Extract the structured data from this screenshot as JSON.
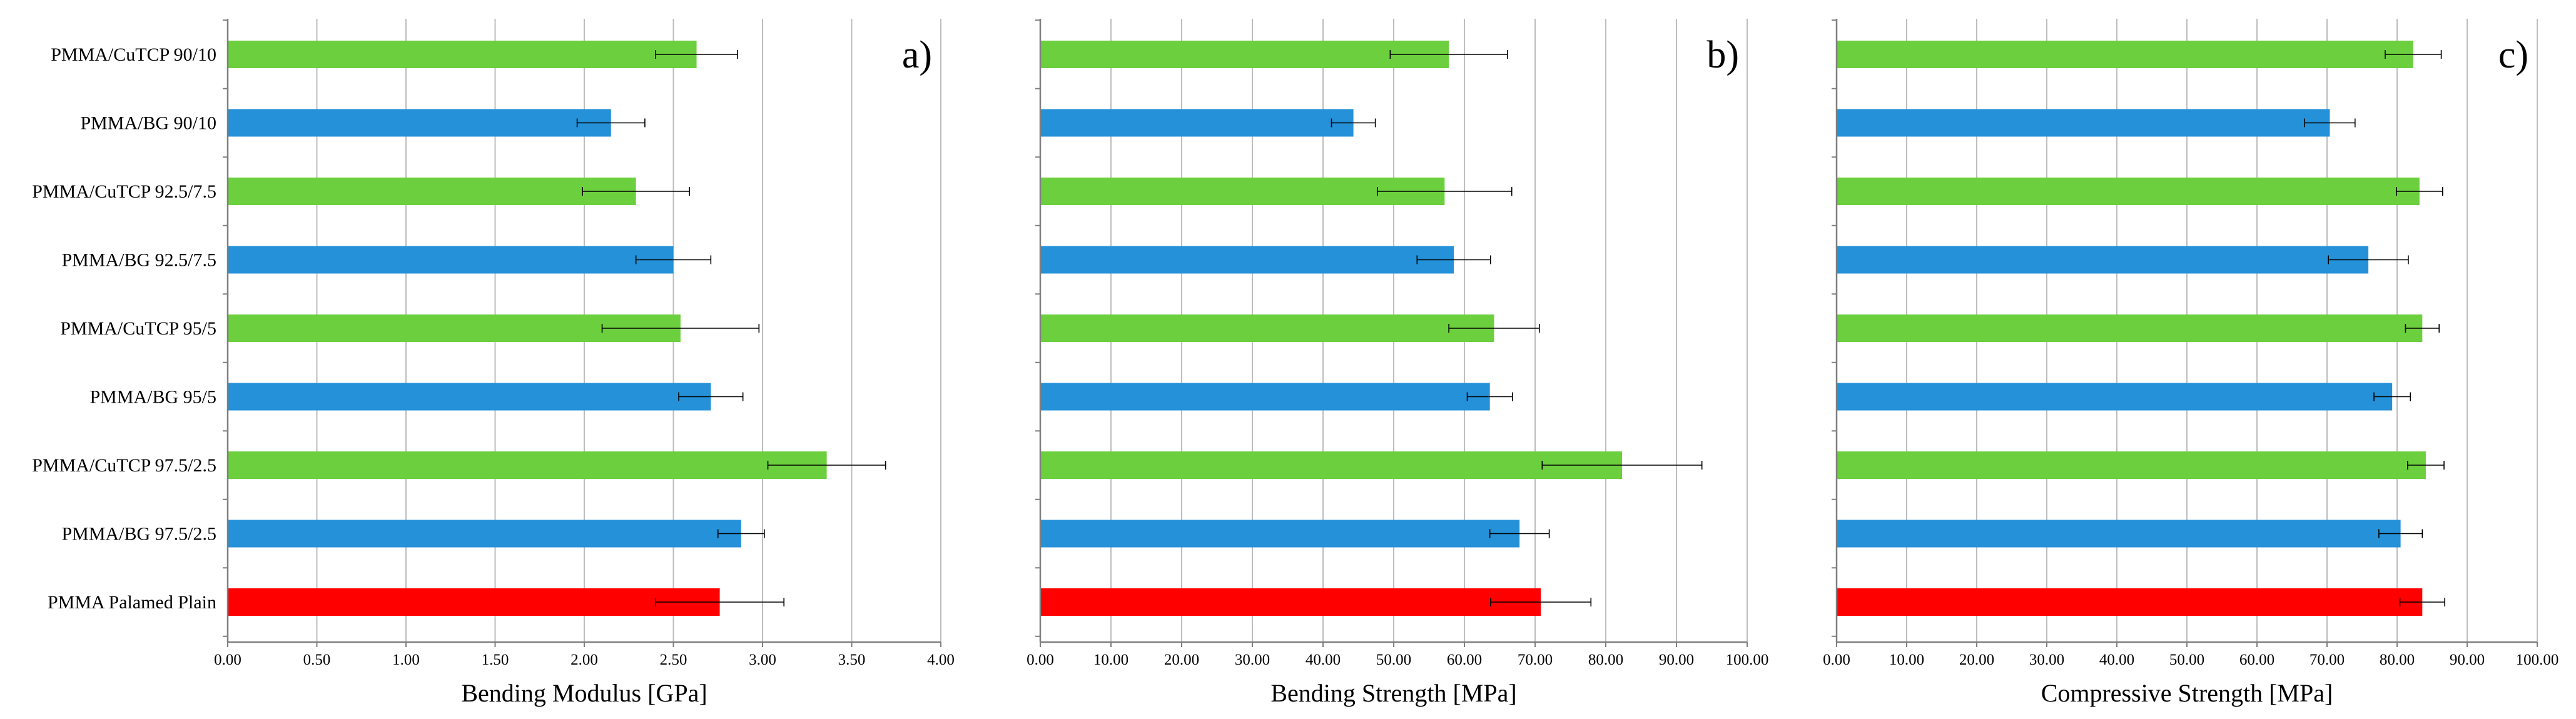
{
  "colors": {
    "cutcp": "#6ccf3e",
    "bg": "#2491d8",
    "plain": "#fe0000",
    "gridline": "#bdbdbd",
    "axis": "#7f7f7f",
    "errorbar": "#000000"
  },
  "chart_data": [
    {
      "type": "bar",
      "orientation": "horizontal",
      "panel_label": "a)",
      "xlabel": "Bending Modulus [GPa]",
      "xlim": [
        0,
        4.0
      ],
      "xticks": [
        "0.00",
        "0.50",
        "1.00",
        "1.50",
        "2.00",
        "2.50",
        "3.00",
        "3.50",
        "4.00"
      ],
      "categories": [
        "PMMA/CuTCP 90/10",
        "PMMA/BG 90/10",
        "PMMA/CuTCP 92.5/7.5",
        "PMMA/BG 92.5/7.5",
        "PMMA/CuTCP 95/5",
        "PMMA/BG 95/5",
        "PMMA/CuTCP 97.5/2.5",
        "PMMA/BG 97.5/2.5",
        "PMMA Palamed Plain"
      ],
      "groups": [
        "cutcp",
        "bg",
        "cutcp",
        "bg",
        "cutcp",
        "bg",
        "cutcp",
        "bg",
        "plain"
      ],
      "values": [
        2.63,
        2.15,
        2.29,
        2.5,
        2.54,
        2.71,
        3.36,
        2.88,
        2.76
      ],
      "errors": [
        0.23,
        0.19,
        0.3,
        0.21,
        0.44,
        0.18,
        0.33,
        0.13,
        0.36
      ],
      "grid": true
    },
    {
      "type": "bar",
      "orientation": "horizontal",
      "panel_label": "b)",
      "xlabel": "Bending Strength [MPa]",
      "xlim": [
        0,
        100
      ],
      "xticks": [
        "0.00",
        "10.00",
        "20.00",
        "30.00",
        "40.00",
        "50.00",
        "60.00",
        "70.00",
        "80.00",
        "90.00",
        "100.00"
      ],
      "categories": [
        "PMMA/CuTCP 90/10",
        "PMMA/BG 90/10",
        "PMMA/CuTCP 92.5/7.5",
        "PMMA/BG 92.5/7.5",
        "PMMA/CuTCP 95/5",
        "PMMA/BG 95/5",
        "PMMA/CuTCP 97.5/2.5",
        "PMMA/BG 97.5/2.5",
        "PMMA Palamed Plain"
      ],
      "groups": [
        "cutcp",
        "bg",
        "cutcp",
        "bg",
        "cutcp",
        "bg",
        "cutcp",
        "bg",
        "plain"
      ],
      "values": [
        57.8,
        44.3,
        57.2,
        58.5,
        64.2,
        63.6,
        82.3,
        67.8,
        70.8
      ],
      "errors": [
        8.3,
        3.1,
        9.5,
        5.2,
        6.4,
        3.2,
        11.3,
        4.2,
        7.1
      ],
      "grid": true
    },
    {
      "type": "bar",
      "orientation": "horizontal",
      "panel_label": "c)",
      "xlabel": "Compressive Strength [MPa]",
      "xlim": [
        0,
        100
      ],
      "xticks": [
        "0.00",
        "10.00",
        "20.00",
        "30.00",
        "40.00",
        "50.00",
        "60.00",
        "70.00",
        "80.00",
        "90.00",
        "100.00"
      ],
      "categories": [
        "PMMA/CuTCP 90/10",
        "PMMA/BG 90/10",
        "PMMA/CuTCP 92.5/7.5",
        "PMMA/BG 92.5/7.5",
        "PMMA/CuTCP 95/5",
        "PMMA/BG 95/5",
        "PMMA/CuTCP 97.5/2.5",
        "PMMA/BG 97.5/2.5",
        "PMMA Palamed Plain"
      ],
      "groups": [
        "cutcp",
        "bg",
        "cutcp",
        "bg",
        "cutcp",
        "bg",
        "cutcp",
        "bg",
        "plain"
      ],
      "values": [
        82.3,
        70.4,
        83.2,
        75.9,
        83.6,
        79.3,
        84.1,
        80.5,
        83.6
      ],
      "errors": [
        4.0,
        3.6,
        3.3,
        5.7,
        2.4,
        2.6,
        2.6,
        3.1,
        3.2
      ],
      "grid": true
    }
  ]
}
